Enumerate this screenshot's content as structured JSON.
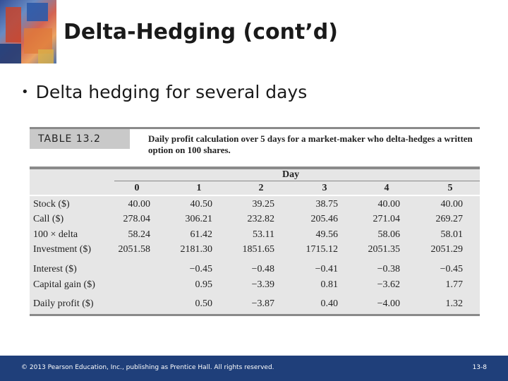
{
  "slide": {
    "title": "Delta-Hedging (cont’d)",
    "bullet": "Delta hedging for several days"
  },
  "table": {
    "label": "TABLE 13.2",
    "caption": "Daily profit calculation over 5 days for a market-maker who delta-hedges a written option on 100 shares.",
    "group_header": "Day",
    "columns": [
      "0",
      "1",
      "2",
      "3",
      "4",
      "5"
    ],
    "rows": [
      {
        "label": "Stock ($)",
        "values": [
          "40.00",
          "40.50",
          "39.25",
          "38.75",
          "40.00",
          "40.00"
        ]
      },
      {
        "label": "Call ($)",
        "values": [
          "278.04",
          "306.21",
          "232.82",
          "205.46",
          "271.04",
          "269.27"
        ]
      },
      {
        "label": "100 × delta",
        "values": [
          "58.24",
          "61.42",
          "53.11",
          "49.56",
          "58.06",
          "58.01"
        ]
      },
      {
        "label": "Investment ($)",
        "values": [
          "2051.58",
          "2181.30",
          "1851.65",
          "1715.12",
          "2051.35",
          "2051.29"
        ]
      },
      {
        "label": "Interest ($)",
        "values": [
          "",
          "−0.45",
          "−0.48",
          "−0.41",
          "−0.38",
          "−0.45"
        ]
      },
      {
        "label": "Capital gain ($)",
        "values": [
          "",
          "0.95",
          "−3.39",
          "0.81",
          "−3.62",
          "1.77"
        ]
      },
      {
        "label": "Daily profit ($)",
        "values": [
          "",
          "0.50",
          "−3.87",
          "0.40",
          "−4.00",
          "1.32"
        ]
      }
    ]
  },
  "footer": {
    "copyright": "© 2013 Pearson Education, Inc., publishing as Prentice Hall. All rights reserved.",
    "page": "13-8"
  }
}
